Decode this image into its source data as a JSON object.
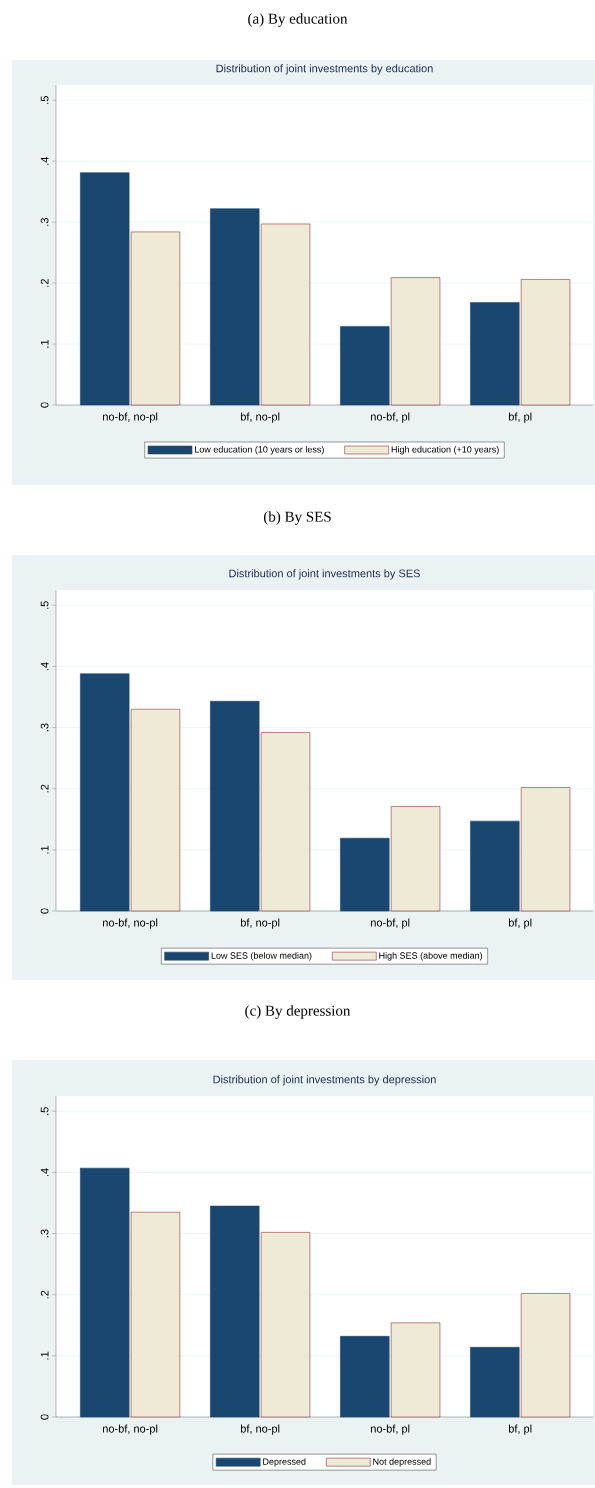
{
  "chart_data": [
    {
      "type": "bar",
      "title": "(a) By education",
      "subtitle": "Distribution of joint investments by education",
      "categories": [
        "no-bf, no-pl",
        "bf, no-pl",
        "no-bf, pl",
        "bf, pl"
      ],
      "series": [
        {
          "name": "Low education (10 years or less)",
          "color": "#1a476f",
          "values": [
            0.381,
            0.322,
            0.129,
            0.168
          ]
        },
        {
          "name": "High education (+10 years)",
          "color": "#eeead6",
          "values": [
            0.284,
            0.297,
            0.209,
            0.206
          ]
        }
      ],
      "ylim": [
        0,
        0.525
      ],
      "yticks": [
        0,
        {
          "value": 0.1,
          "label": ".1"
        },
        {
          "value": 0.2,
          "label": ".2"
        },
        {
          "value": 0.3,
          "label": ".3"
        },
        {
          "value": 0.4,
          "label": ".4"
        },
        {
          "value": 0.5,
          "label": ".5"
        }
      ],
      "grid": "y",
      "legend": "bottom"
    },
    {
      "type": "bar",
      "title": "(b) By SES",
      "subtitle": "Distribution of joint investments by SES",
      "categories": [
        "no-bf, no-pl",
        "bf, no-pl",
        "no-bf, pl",
        "bf, pl"
      ],
      "series": [
        {
          "name": "Low SES (below median)",
          "color": "#1a476f",
          "values": [
            0.388,
            0.343,
            0.119,
            0.147
          ]
        },
        {
          "name": "High SES (above median)",
          "color": "#eeead6",
          "values": [
            0.33,
            0.292,
            0.171,
            0.202
          ]
        }
      ],
      "ylim": [
        0,
        0.525
      ],
      "yticks": [
        0,
        {
          "value": 0.1,
          "label": ".1"
        },
        {
          "value": 0.2,
          "label": ".2"
        },
        {
          "value": 0.3,
          "label": ".3"
        },
        {
          "value": 0.4,
          "label": ".4"
        },
        {
          "value": 0.5,
          "label": ".5"
        }
      ],
      "grid": "y",
      "legend": "bottom"
    },
    {
      "type": "bar",
      "title": "(c) By depression",
      "subtitle": "Distribution of joint investments by depression",
      "categories": [
        "no-bf, no-pl",
        "bf, no-pl",
        "no-bf, pl",
        "bf, pl"
      ],
      "series": [
        {
          "name": "Depressed",
          "color": "#1a476f",
          "values": [
            0.407,
            0.345,
            0.132,
            0.114
          ]
        },
        {
          "name": "Not depressed",
          "color": "#eeead6",
          "values": [
            0.335,
            0.302,
            0.154,
            0.202
          ]
        }
      ],
      "ylim": [
        0,
        0.525
      ],
      "yticks": [
        0,
        {
          "value": 0.1,
          "label": ".1"
        },
        {
          "value": 0.2,
          "label": ".2"
        },
        {
          "value": 0.3,
          "label": ".3"
        },
        {
          "value": 0.4,
          "label": ".4"
        },
        {
          "value": 0.5,
          "label": ".5"
        }
      ],
      "grid": "y",
      "legend": "bottom"
    }
  ]
}
